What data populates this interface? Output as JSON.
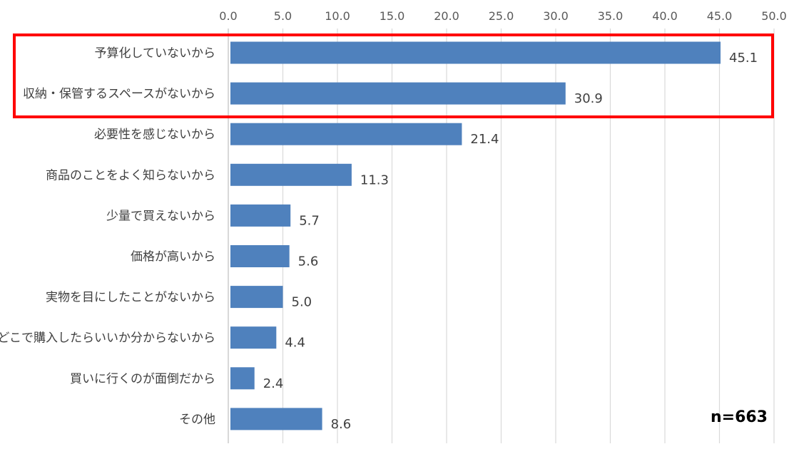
{
  "chart_data": {
    "type": "bar",
    "orientation": "horizontal",
    "categories": [
      "予算化していないから",
      "収納・保管するスペースがないから",
      "必要性を感じないから",
      "商品のことをよく知らないから",
      "少量で買えないから",
      "価格が高いから",
      "実物を目にしたことがないから",
      "どこで購入したらいいか分からないから",
      "買いに行くのが面倒だから",
      "その他"
    ],
    "values": [
      45.1,
      30.9,
      21.4,
      11.3,
      5.7,
      5.6,
      5.0,
      4.4,
      2.4,
      8.6
    ],
    "value_labels": [
      "45.1",
      "30.9",
      "21.4",
      "11.3",
      "5.7",
      "5.6",
      "5.0",
      "4.4",
      "2.4",
      "8.6"
    ],
    "xlim": [
      0,
      50
    ],
    "x_ticks": [
      "0.0",
      "5.0",
      "10.0",
      "15.0",
      "20.0",
      "25.0",
      "30.0",
      "35.0",
      "40.0",
      "45.0",
      "50.0"
    ],
    "x_axis_position": "top",
    "grid": true,
    "bar_color": "#4f81bd",
    "gridline_color": "#d9d9d9",
    "annotation": "n=663",
    "highlight": {
      "categories": [
        "予算化していないから",
        "収納・保管するスペースがないから"
      ],
      "color": "#ff0000"
    }
  }
}
